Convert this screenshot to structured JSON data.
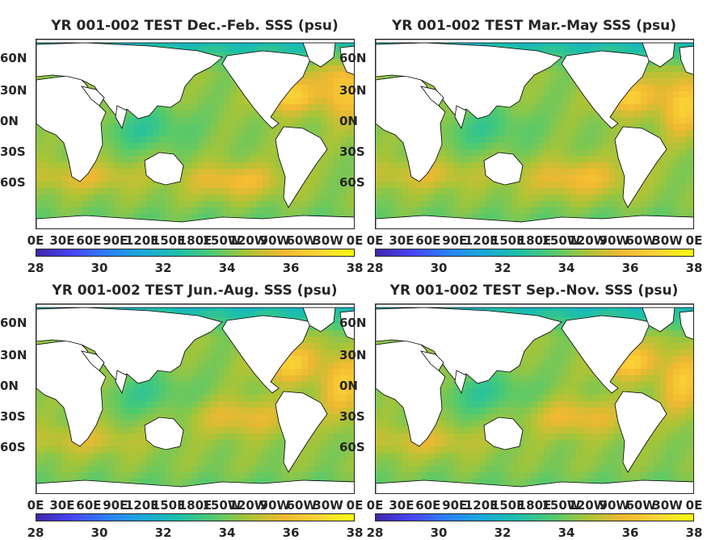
{
  "panels": [
    {
      "title": "YR 001-002 TEST Dec.-Feb. SSS (psu)",
      "season": "djf"
    },
    {
      "title": "YR 001-002 TEST Mar.-May SSS (psu)",
      "season": "mam"
    },
    {
      "title": "YR 001-002 TEST Jun.-Aug. SSS (psu)",
      "season": "jja"
    },
    {
      "title": "YR 001-002 TEST Sep.-Nov. SSS (psu)",
      "season": "son"
    }
  ],
  "lat_ticks": [
    "60N",
    "30N",
    "0N",
    "30S",
    "60S"
  ],
  "lon_ticks": [
    "0E",
    "30E",
    "60E",
    "90E",
    "120E",
    "150E",
    "180E",
    "150W",
    "120W",
    "90W",
    "60W",
    "30W",
    "0E"
  ],
  "colorbar": {
    "ticks": [
      "28",
      "30",
      "32",
      "34",
      "36",
      "38"
    ],
    "min": 28,
    "max": 38,
    "colors": [
      "#3e26a8",
      "#4743f3",
      "#2b7ff8",
      "#1aa8d8",
      "#1cbfaa",
      "#4fca70",
      "#a9c437",
      "#f0b832",
      "#fbd536",
      "#f9fb0e"
    ]
  },
  "colors": {
    "land": "#ffffff",
    "ocean_base": "#2fb3a6"
  }
}
